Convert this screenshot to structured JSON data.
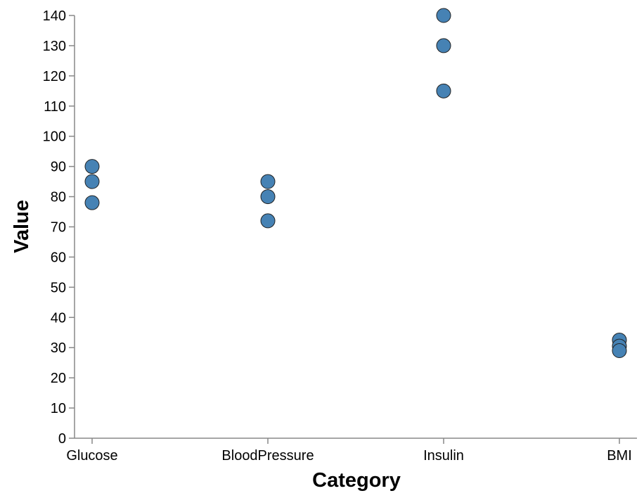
{
  "chart_data": {
    "type": "scatter",
    "title": "",
    "xlabel": "Category",
    "ylabel": "Value",
    "categories": [
      "Glucose",
      "BloodPressure",
      "Insulin",
      "BMI"
    ],
    "ylim": [
      0,
      140
    ],
    "yticks": [
      0,
      10,
      20,
      30,
      40,
      50,
      60,
      70,
      80,
      90,
      100,
      110,
      120,
      130,
      140
    ],
    "grid": false,
    "point_color": "#4682b4",
    "points": [
      {
        "category": "Glucose",
        "value": 90
      },
      {
        "category": "Glucose",
        "value": 85
      },
      {
        "category": "Glucose",
        "value": 78
      },
      {
        "category": "BloodPressure",
        "value": 85
      },
      {
        "category": "BloodPressure",
        "value": 80
      },
      {
        "category": "BloodPressure",
        "value": 72
      },
      {
        "category": "Insulin",
        "value": 140
      },
      {
        "category": "Insulin",
        "value": 130
      },
      {
        "category": "Insulin",
        "value": 115
      },
      {
        "category": "BMI",
        "value": 32.5
      },
      {
        "category": "BMI",
        "value": 30.5
      },
      {
        "category": "BMI",
        "value": 29
      }
    ]
  }
}
